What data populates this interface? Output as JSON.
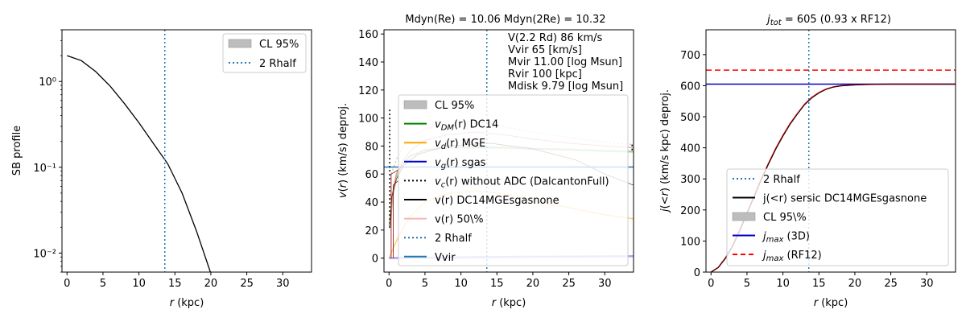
{
  "chart_data": [
    {
      "type": "line",
      "xlabel": "r (kpc)",
      "ylabel": "SB profile",
      "yscale": "log",
      "xlim": [
        -0.7,
        34
      ],
      "ylim": [
        0.006,
        4
      ],
      "x_ticks": [
        0,
        5,
        10,
        15,
        20,
        25,
        30
      ],
      "x_tick_labels": [
        "0",
        "5",
        "10",
        "15",
        "20",
        "25",
        "30"
      ],
      "y_ticks": [
        0.01,
        0.1,
        1
      ],
      "y_tick_labels": [
        "10⁻²",
        "10⁻¹",
        "10⁰"
      ],
      "vline_x": 13.6,
      "series": [
        {
          "name": "SB",
          "color": "#000000",
          "x": [
            0,
            2,
            4,
            6,
            8,
            10,
            12,
            14,
            16,
            18,
            20
          ],
          "y": [
            2.0,
            1.75,
            1.3,
            0.88,
            0.55,
            0.33,
            0.19,
            0.11,
            0.05,
            0.018,
            0.0058
          ]
        }
      ],
      "legend": [
        {
          "label": "CL 95%",
          "kind": "patch",
          "color": "#bdbdbd"
        },
        {
          "label": "2 Rhalf",
          "kind": "dotted",
          "color": "#1f77b4"
        }
      ]
    },
    {
      "type": "line",
      "title": "Mdyn(Re) = 10.06  Mdyn(2Re) = 10.32",
      "xlabel": "r (kpc)",
      "ylabel": "v(r) (km/s) deproj.",
      "xlim": [
        -0.7,
        34
      ],
      "ylim": [
        -10,
        163
      ],
      "x_ticks": [
        0,
        5,
        10,
        15,
        20,
        25,
        30
      ],
      "x_tick_labels": [
        "0",
        "5",
        "10",
        "15",
        "20",
        "25",
        "30"
      ],
      "y_ticks": [
        0,
        20,
        40,
        60,
        80,
        100,
        120,
        140,
        160
      ],
      "y_tick_labels": [
        "0",
        "20",
        "40",
        "60",
        "80",
        "100",
        "120",
        "140",
        "160"
      ],
      "vline_x": 13.6,
      "vvir": 65,
      "text_block": [
        "V(2.2 Rd) 86 km/s",
        "Vvir 65 [km/s]",
        "Mvir 11.00 [log Msun]",
        "Rvir 100 [kpc]",
        "Mdisk 9.79 [log Msun]"
      ],
      "series": [
        {
          "name": "v_DM(r) DC14",
          "color": "#008000",
          "x": [
            0.1,
            0.5,
            1,
            2,
            3,
            5,
            8,
            12,
            16,
            20,
            25,
            30,
            34
          ],
          "y": [
            22,
            45,
            58,
            68,
            73,
            77,
            79,
            79,
            79,
            78,
            77.5,
            76.5,
            76
          ]
        },
        {
          "name": "v_d(r) MGE",
          "color": "#ffa500",
          "x": [
            0,
            1,
            2,
            3,
            5,
            8,
            12,
            16,
            20,
            25,
            30,
            34
          ],
          "y": [
            0,
            12,
            22,
            30,
            40,
            46,
            48,
            46,
            41,
            36,
            31,
            28
          ]
        },
        {
          "name": "v_g(r) sgas",
          "color": "#0000cc",
          "x": [
            0,
            5,
            10,
            15,
            20,
            25,
            30,
            34
          ],
          "y": [
            0,
            0.3,
            0.5,
            0.8,
            1.0,
            1.1,
            1.2,
            1.3
          ]
        },
        {
          "name": "v_c(r) without ADC",
          "color": "#c8c8c8",
          "x": [
            0.3,
            1,
            2,
            3,
            5,
            8,
            12,
            16,
            20,
            25,
            30,
            34
          ],
          "y": [
            60,
            70,
            80,
            86,
            92,
            96,
            98,
            94,
            90,
            86,
            83,
            81
          ]
        },
        {
          "name": "v(r) DC14MGEsgasnone",
          "color": "#e08080",
          "x": [
            0.1,
            0.5,
            1,
            2,
            3,
            5,
            8,
            12,
            16,
            20,
            25,
            30,
            34
          ],
          "y": [
            22,
            46,
            60,
            70,
            77,
            84,
            88,
            90,
            88,
            85,
            82,
            80,
            79
          ]
        }
      ],
      "legend": [
        {
          "label": "CL 95%",
          "kind": "patch",
          "color": "#bdbdbd"
        },
        {
          "label": "v_DM(r) DC14",
          "kind": "line",
          "color": "#008000"
        },
        {
          "label": "v_d(r) MGE",
          "kind": "line",
          "color": "#ffa500"
        },
        {
          "label": "v_g(r) sgas",
          "kind": "line",
          "color": "#0000cc"
        },
        {
          "label": "v_c(r) without ADC (DalcantonFull)",
          "kind": "dotted",
          "color": "#000000"
        },
        {
          "label": "v(r) DC14MGEsgasnone",
          "kind": "line",
          "color": "#000000"
        },
        {
          "label": "v(r) 50\\%",
          "kind": "line",
          "color": "#f4b6b6"
        },
        {
          "label": "2 Rhalf",
          "kind": "dotted",
          "color": "#1f77b4"
        },
        {
          "label": "Vvir",
          "kind": "line",
          "color": "#1f77b4"
        }
      ]
    },
    {
      "type": "line",
      "title": "j_tot = 605 (0.93 x RF12)",
      "xlabel": "r (kpc)",
      "ylabel": "j(<r) (km/s kpc) deproj.",
      "xlim": [
        -0.7,
        34
      ],
      "ylim": [
        0,
        780
      ],
      "x_ticks": [
        0,
        5,
        10,
        15,
        20,
        25,
        30
      ],
      "x_tick_labels": [
        "0",
        "5",
        "10",
        "15",
        "20",
        "25",
        "30"
      ],
      "y_ticks": [
        0,
        100,
        200,
        300,
        400,
        500,
        600,
        700
      ],
      "y_tick_labels": [
        "0",
        "100",
        "200",
        "300",
        "400",
        "500",
        "600",
        "700"
      ],
      "vline_x": 13.6,
      "jmax_3d": 605,
      "jmax_rf12": 650,
      "series": [
        {
          "name": "j(<r) sersic DC14MGEsgasnone",
          "color": "#cc0000",
          "x": [
            0,
            1,
            2,
            3,
            4,
            5,
            6,
            7,
            8,
            9,
            10,
            11,
            12,
            13,
            14,
            15,
            16,
            17,
            18,
            20,
            22,
            25,
            30,
            34
          ],
          "y": [
            0,
            15,
            45,
            85,
            135,
            190,
            245,
            300,
            350,
            398,
            440,
            478,
            510,
            540,
            562,
            578,
            589,
            596,
            600,
            603,
            604,
            605,
            605,
            605
          ]
        }
      ],
      "legend": [
        {
          "label": "2 Rhalf",
          "kind": "dotted",
          "color": "#1f77b4"
        },
        {
          "label": "j(<r) sersic DC14MGEsgasnone",
          "kind": "line",
          "color": "#000000"
        },
        {
          "label": "CL 95\\%",
          "kind": "patch",
          "color": "#bdbdbd"
        },
        {
          "label": "j_max (3D)",
          "kind": "line",
          "color": "#0000cc"
        },
        {
          "label": "j_max (RF12)",
          "kind": "dashed",
          "color": "#ff0000"
        }
      ]
    }
  ]
}
